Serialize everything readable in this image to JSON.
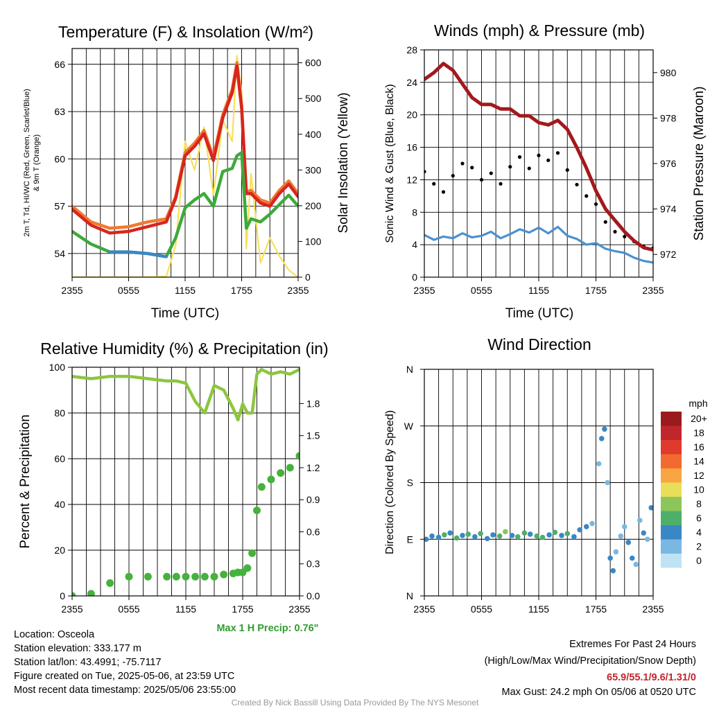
{
  "x_ticks": [
    "2355",
    "0555",
    "1155",
    "1755",
    "2355"
  ],
  "panels": {
    "temp": {
      "title": "Temperature (F) & Insolation (W/m²)",
      "xlabel": "Time (UTC)",
      "ylabel_lines": [
        "2m T, Td, HI/WC (Red, Green, Scarlet/Blue)",
        "& 9m T (Orange)"
      ],
      "ylabel_right": "Solar Insolation (Yellow)",
      "left_ticks": [
        "54",
        "57",
        "60",
        "63",
        "66"
      ],
      "right_ticks": [
        "0",
        "100",
        "200",
        "300",
        "400",
        "500",
        "600"
      ]
    },
    "wind": {
      "title": "Winds (mph) & Pressure (mb)",
      "xlabel": "Time (UTC)",
      "ylabel": "Sonic Wind & Gust (Blue, Black)",
      "ylabel_right": "Station Pressure (Maroon)",
      "left_ticks": [
        "0",
        "4",
        "8",
        "12",
        "16",
        "20",
        "24",
        "28"
      ],
      "right_ticks": [
        "972",
        "974",
        "976",
        "978",
        "980"
      ]
    },
    "rh": {
      "title": "Relative Humidity (%) & Precipitation (in)",
      "ylabel": "Percent & Precipitation",
      "left_ticks": [
        "0",
        "20",
        "40",
        "60",
        "80",
        "100"
      ],
      "right_ticks": [
        "0.0",
        "0.3",
        "0.6",
        "0.9",
        "1.2",
        "1.5",
        "1.8"
      ],
      "note": "Max 1 H Precip: 0.76\""
    },
    "dir": {
      "title": "Wind Direction",
      "ylabel": "Direction (Colored By Speed)",
      "left_ticks": [
        "N",
        "E",
        "S",
        "W",
        "N"
      ],
      "legend_title": "mph",
      "legend_labels": [
        "20+",
        "18",
        "16",
        "14",
        "12",
        "10",
        "8",
        "6",
        "4",
        "2",
        "0"
      ],
      "legend_colors": [
        "#9b1a1e",
        "#c0272d",
        "#e03a2e",
        "#f26a30",
        "#f8a542",
        "#e8de5a",
        "#8cc65a",
        "#4fae6a",
        "#3a87c6",
        "#7ab8e2",
        "#bfe3f5"
      ]
    }
  },
  "colors": {
    "temp_red": "#d7261e",
    "dewpoint_green": "#3daa3a",
    "windchill_blue": "#3a87c6",
    "temp9m_orange": "#f07a30",
    "solar_yellow": "#f7e05a",
    "wind_blue": "#4a90d0",
    "gust_black": "#000000",
    "pressure_maroon": "#a3191c",
    "rh_lightgreen": "#8cc63f",
    "precip_green": "#45b23c",
    "note_green": "#2e9e2e",
    "extremes_red": "#c0272d"
  },
  "info": {
    "location": "Location: Osceola",
    "elevation": "Station elevation: 333.177 m",
    "latlon": "Station lat/lon: 43.4991; -75.7117",
    "created": "Figure created on Tue, 2025-05-06, at 23:59 UTC",
    "recent": "Most recent data timestamp: 2025/05/06 23:55:00"
  },
  "extremes": {
    "title": "Extremes For Past 24 Hours",
    "subtitle": "(High/Low/Max Wind/Precipitation/Snow Depth)",
    "values": "65.9/55.1/9.6/1.31/0",
    "gust": "Max Gust: 24.2 mph On 05/06 at 0520 UTC"
  },
  "credit": "Created By Nick Bassill Using Data Provided By The NYS Mesonet",
  "chart_data": [
    {
      "type": "line",
      "title": "Temperature (F) & Insolation (W/m²)",
      "xlabel": "Time (UTC)",
      "ylim": [
        52.5,
        67
      ],
      "y2lim": [
        0,
        640
      ],
      "x": [
        0,
        2,
        4,
        6,
        8,
        10,
        11,
        12,
        13,
        14,
        15,
        16,
        17,
        17.5,
        18,
        18.5,
        19,
        20,
        21,
        22,
        23,
        24
      ],
      "series": [
        {
          "name": "2m T (Red)",
          "values": [
            56.8,
            55.8,
            55.3,
            55.4,
            55.7,
            56.0,
            57.5,
            60.2,
            60.8,
            61.6,
            59.9,
            62.6,
            64.2,
            65.9,
            63.2,
            57.8,
            57.8,
            57.2,
            57.0,
            57.8,
            58.4,
            57.6
          ]
        },
        {
          "name": "Td (Green)",
          "values": [
            55.4,
            54.6,
            54.1,
            54.1,
            54.0,
            53.8,
            55.0,
            56.9,
            57.4,
            57.8,
            57.0,
            59.2,
            59.4,
            60.2,
            60.4,
            55.6,
            56.2,
            56.0,
            56.5,
            57.1,
            57.7,
            57.0
          ]
        },
        {
          "name": "HI/WC (Blue)",
          "values": [
            55.6,
            null,
            54.1,
            54.1,
            54.0,
            53.8,
            null,
            null,
            null,
            null,
            null,
            null,
            null,
            null,
            null,
            null,
            null,
            null,
            null,
            null,
            null,
            null
          ]
        },
        {
          "name": "9m T (Orange)",
          "values": [
            57.0,
            56.0,
            55.6,
            55.7,
            56.0,
            56.2,
            57.6,
            60.4,
            61.0,
            61.8,
            60.1,
            62.8,
            64.4,
            66.1,
            63.4,
            57.9,
            58.0,
            57.4,
            57.2,
            58.0,
            58.6,
            57.8
          ]
        },
        {
          "name": "Solar Insolation (Yellow)",
          "axis": "right",
          "values": [
            0,
            0,
            0,
            0,
            0,
            2,
            90,
            380,
            300,
            420,
            230,
            440,
            380,
            620,
            520,
            80,
            290,
            40,
            110,
            60,
            20,
            0
          ]
        }
      ]
    },
    {
      "type": "line",
      "title": "Winds (mph) & Pressure (mb)",
      "xlabel": "Time (UTC)",
      "ylim": [
        0,
        28
      ],
      "y2lim": [
        971.0,
        981.0
      ],
      "x": [
        0,
        1,
        2,
        3,
        4,
        5,
        6,
        7,
        8,
        9,
        10,
        11,
        12,
        13,
        14,
        15,
        16,
        17,
        18,
        19,
        20,
        21,
        22,
        23,
        24
      ],
      "series": [
        {
          "name": "Sonic Wind (Blue)",
          "values": [
            5.2,
            4.6,
            5.0,
            4.8,
            5.4,
            4.9,
            5.1,
            5.6,
            4.8,
            5.3,
            5.9,
            5.5,
            6.1,
            5.4,
            6.2,
            5.1,
            4.7,
            4.0,
            4.2,
            3.5,
            3.2,
            3.0,
            2.4,
            2.0,
            1.8
          ]
        },
        {
          "name": "Gust (Black)",
          "values": [
            13.0,
            11.5,
            10.5,
            12.5,
            14.0,
            13.5,
            12.0,
            12.8,
            11.5,
            13.6,
            14.8,
            13.4,
            15.0,
            14.4,
            15.3,
            13.2,
            11.4,
            10.0,
            9.0,
            6.8,
            5.6,
            5.0,
            4.4,
            3.8,
            3.6
          ]
        },
        {
          "name": "Station Pressure (Maroon)",
          "axis": "right",
          "values": [
            979.7,
            980.0,
            980.4,
            980.1,
            979.5,
            978.9,
            978.6,
            978.6,
            978.4,
            978.4,
            978.1,
            978.1,
            977.8,
            977.7,
            977.9,
            977.5,
            976.7,
            975.8,
            974.8,
            974.0,
            973.5,
            973.0,
            972.6,
            972.3,
            972.2
          ]
        }
      ]
    },
    {
      "type": "line",
      "title": "Relative Humidity (%) & Precipitation (in)",
      "ylim": [
        0,
        100
      ],
      "y2lim": [
        0,
        2.14
      ],
      "x": [
        0,
        2,
        4,
        6,
        8,
        10,
        11,
        12,
        13,
        14,
        15,
        16,
        17,
        17.5,
        18,
        18.5,
        19,
        19.5,
        20,
        21,
        22,
        23,
        24
      ],
      "series": [
        {
          "name": "Relative Humidity (Light Green)",
          "values": [
            96,
            95,
            96,
            96,
            95,
            94,
            94,
            93,
            85,
            80,
            92,
            90,
            82,
            77,
            84,
            80,
            80,
            97,
            99,
            97,
            98,
            97,
            99
          ]
        },
        {
          "name": "Precipitation (Green)",
          "axis": "right",
          "values": [
            0.0,
            0.02,
            0.12,
            0.18,
            0.18,
            0.18,
            0.18,
            0.18,
            0.18,
            0.18,
            0.18,
            0.2,
            0.21,
            0.22,
            0.22,
            0.26,
            0.4,
            0.8,
            1.02,
            1.09,
            1.15,
            1.2,
            1.31
          ]
        }
      ]
    },
    {
      "type": "scatter",
      "title": "Wind Direction",
      "ylabel": "Direction (Colored By Speed)",
      "y_ticks": [
        "N",
        "E",
        "S",
        "W",
        "N"
      ],
      "ylim": [
        0,
        360
      ],
      "x": [
        0.2,
        0.8,
        1.5,
        2.1,
        2.7,
        3.4,
        4.0,
        4.6,
        5.3,
        5.9,
        6.6,
        7.2,
        7.9,
        8.5,
        9.2,
        9.8,
        10.5,
        11.1,
        11.8,
        12.4,
        13.1,
        13.7,
        14.4,
        15.0,
        15.7,
        16.3,
        17.0,
        17.6,
        18.3,
        18.6,
        18.9,
        19.2,
        19.5,
        19.8,
        20.1,
        20.6,
        21.0,
        21.4,
        21.8,
        22.2,
        22.6,
        23.0,
        23.4,
        23.8
      ],
      "values": [
        90,
        95,
        93,
        97,
        100,
        92,
        96,
        98,
        94,
        99,
        91,
        97,
        95,
        102,
        96,
        94,
        100,
        98,
        95,
        93,
        97,
        101,
        96,
        99,
        94,
        105,
        110,
        115,
        210,
        250,
        265,
        180,
        60,
        40,
        70,
        95,
        110,
        85,
        60,
        50,
        120,
        100,
        90,
        140
      ],
      "speeds": [
        4,
        3,
        4,
        5,
        3,
        6,
        4,
        5,
        4,
        6,
        3,
        4,
        5,
        7,
        4,
        5,
        6,
        4,
        6,
        5,
        4,
        5,
        3,
        6,
        4,
        3,
        4,
        2,
        1,
        3,
        4,
        2,
        3,
        4,
        2,
        1,
        2,
        3,
        4,
        2,
        1,
        3,
        2,
        4
      ]
    }
  ]
}
